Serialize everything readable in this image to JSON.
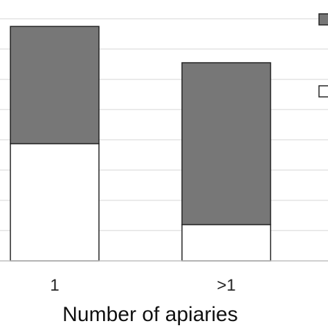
{
  "chart_data": {
    "type": "bar",
    "stacked": true,
    "categories": [
      "1",
      ">1"
    ],
    "series": [
      {
        "values": [
          0.42,
          0.13
        ],
        "color": "#ffffff"
      },
      {
        "values": [
          0.42,
          0.58
        ],
        "color": "#777777"
      }
    ],
    "title": "",
    "xlabel": "Number of apiaries",
    "ylabel": "",
    "ylim": [
      0,
      0.9
    ],
    "grid": true,
    "legend_position": "right"
  }
}
